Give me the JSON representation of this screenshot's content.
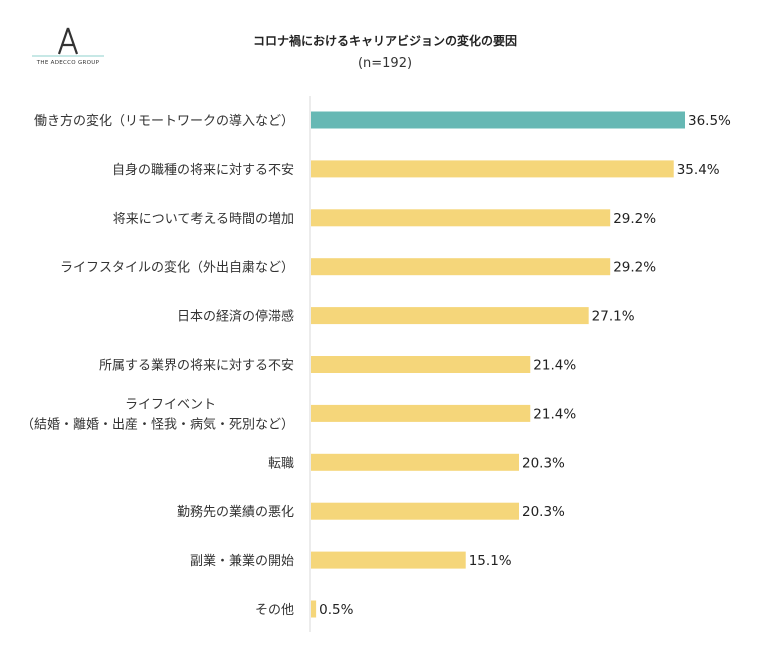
{
  "logo": {
    "text": "THE ADECCO GROUP",
    "icon": "adecco-a-logo"
  },
  "chart_data": {
    "type": "bar",
    "orientation": "horizontal",
    "title": "コロナ禍におけるキャリアビジョンの変化の要因",
    "subtitle": "(n=192)",
    "categories": [
      "働き方の変化（リモートワークの導入など）",
      "自身の職種の将来に対する不安",
      "将来について考える時間の増加",
      "ライフスタイルの変化（外出自粛など）",
      "日本の経済の停滞感",
      "所属する業界の将来に対する不安",
      "ライフイベント\n（結婚・離婚・出産・怪我・病気・死別など）",
      "転職",
      "勤務先の業績の悪化",
      "副業・兼業の開始",
      "その他"
    ],
    "values": [
      36.5,
      35.4,
      29.2,
      29.2,
      27.1,
      21.4,
      21.4,
      20.3,
      20.3,
      15.1,
      0.5
    ],
    "value_labels": [
      "36.5%",
      "35.4%",
      "29.2%",
      "29.2%",
      "27.1%",
      "21.4%",
      "21.4%",
      "20.3%",
      "20.3%",
      "15.1%",
      "0.5%"
    ],
    "colors": {
      "highlight": "#66b8b4",
      "default": "#f5d67a",
      "axis": "#d9d9d9"
    },
    "highlight_index": 0,
    "xlim": [
      0,
      40
    ],
    "grid": false
  }
}
